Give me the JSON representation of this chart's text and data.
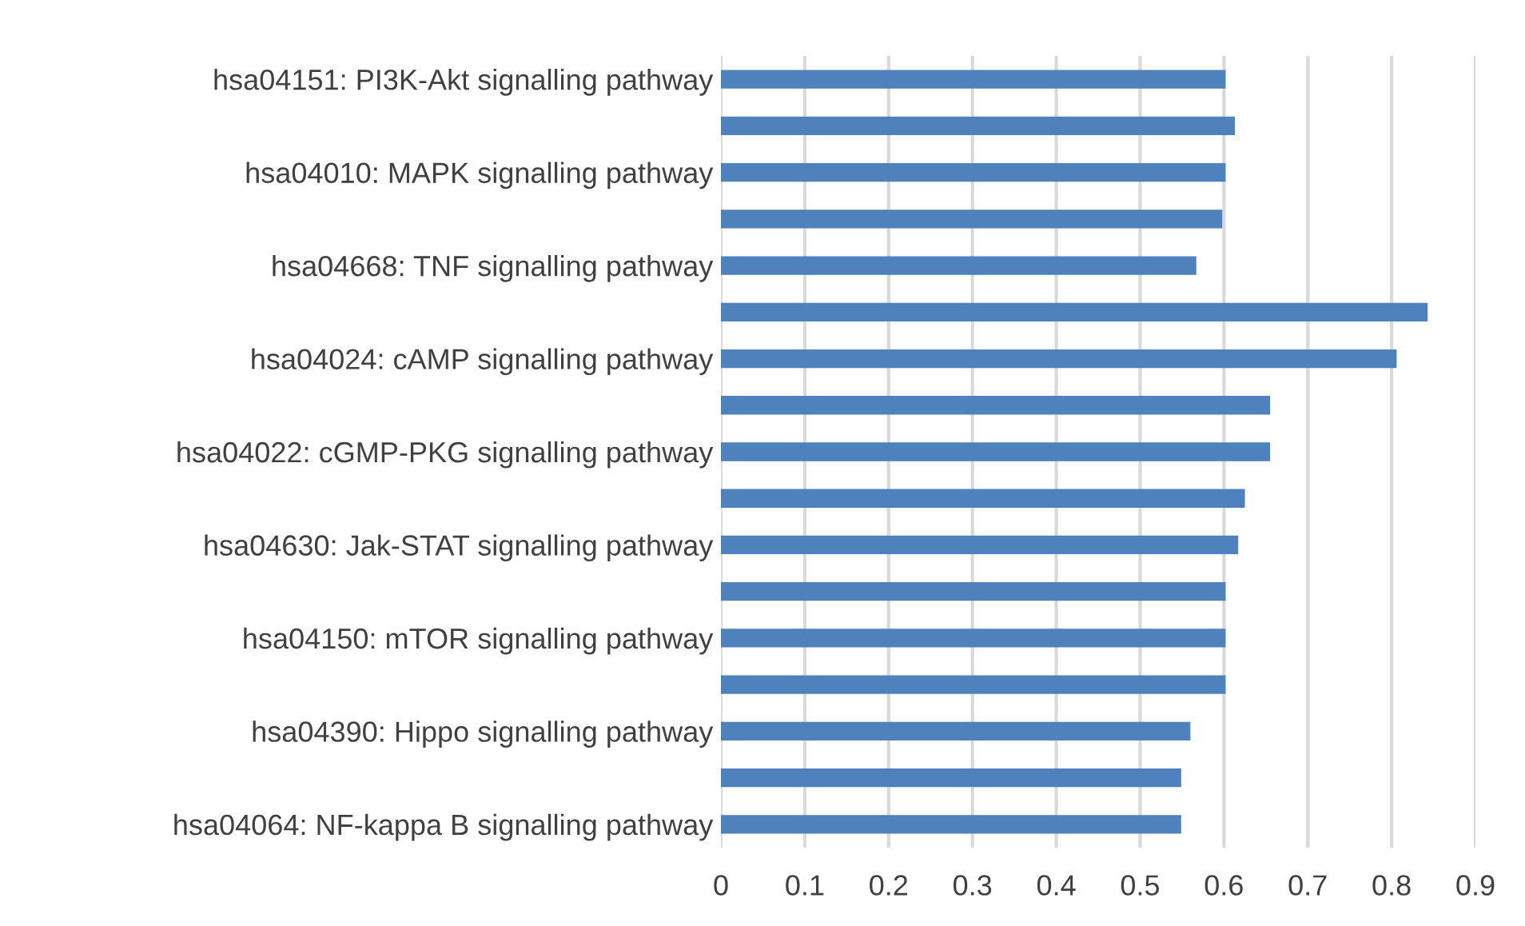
{
  "chart_data": {
    "type": "bar",
    "orientation": "horizontal",
    "categories": [
      "hsa04151: PI3K-Akt signalling pathway",
      null,
      "hsa04010: MAPK signalling pathway",
      null,
      "hsa04668: TNF signalling pathway",
      null,
      "hsa04024: cAMP signalling pathway",
      null,
      "hsa04022: cGMP-PKG signalling pathway",
      null,
      "hsa04630: Jak-STAT signalling pathway",
      null,
      "hsa04150: mTOR signalling pathway",
      null,
      "hsa04390: Hippo signalling pathway",
      null,
      "hsa04064: NF-kappa B signalling pathway"
    ],
    "values": [
      0.602,
      0.613,
      0.602,
      0.598,
      0.567,
      0.843,
      0.806,
      0.655,
      0.655,
      0.625,
      0.617,
      0.602,
      0.602,
      0.602,
      0.56,
      0.549,
      0.549
    ],
    "color": "#4f81bd",
    "xlim": [
      0,
      0.9
    ],
    "xticks": [
      0,
      0.1,
      0.2,
      0.3,
      0.4,
      0.5,
      0.6,
      0.7,
      0.8,
      0.9
    ],
    "grid": "x"
  }
}
